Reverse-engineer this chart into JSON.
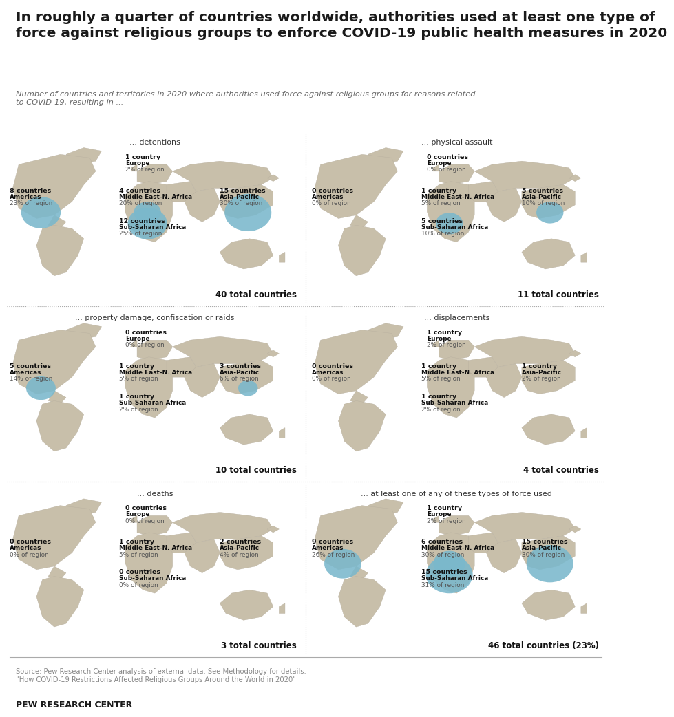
{
  "title": "In roughly a quarter of countries worldwide, authorities used at least one type of\nforce against religious groups to enforce COVID-19 public health measures in 2020",
  "subtitle": "Number of countries and territories in 2020 where authorities used force against religious groups for reasons related\nto COVID-19, resulting in ...",
  "source": "Source: Pew Research Center analysis of external data. See Methodology for details.\n\"How COVID-19 Restrictions Affected Religious Groups Around the World in 2020\"",
  "branding": "PEW RESEARCH CENTER",
  "bg_color": "#ffffff",
  "map_bg_color": "#ddd8c8",
  "map_color": "#c8bfaa",
  "bubble_color": "#7ab8cc",
  "panels": [
    {
      "title": "... detentions",
      "total": "40 total countries",
      "regions": [
        {
          "name": "Europe",
          "count": "1 country",
          "pct": "2% of region",
          "bubble": false,
          "bubble_size": 0
        },
        {
          "name": "Americas",
          "count": "8 countries",
          "pct": "23% of region",
          "bubble": true,
          "bubble_size": 32
        },
        {
          "name": "Middle East-N. Africa",
          "count": "4 countries",
          "pct": "20% of region",
          "bubble": true,
          "bubble_size": 22
        },
        {
          "name": "Asia-Pacific",
          "count": "15 countries",
          "pct": "30% of region",
          "bubble": true,
          "bubble_size": 38
        },
        {
          "name": "Sub-Saharan Africa",
          "count": "12 countries",
          "pct": "25% of region",
          "bubble": true,
          "bubble_size": 32
        }
      ]
    },
    {
      "title": "... physical assault",
      "total": "11 total countries",
      "regions": [
        {
          "name": "Europe",
          "count": "0 countries",
          "pct": "0% of region",
          "bubble": false,
          "bubble_size": 0
        },
        {
          "name": "Americas",
          "count": "0 countries",
          "pct": "0% of region",
          "bubble": false,
          "bubble_size": 0
        },
        {
          "name": "Middle East-N. Africa",
          "count": "1 country",
          "pct": "5% of region",
          "bubble": false,
          "bubble_size": 0
        },
        {
          "name": "Asia-Pacific",
          "count": "5 countries",
          "pct": "10% of region",
          "bubble": true,
          "bubble_size": 22
        },
        {
          "name": "Sub-Saharan Africa",
          "count": "5 countries",
          "pct": "10% of region",
          "bubble": true,
          "bubble_size": 22
        }
      ]
    },
    {
      "title": "... property damage, confiscation or raids",
      "total": "10 total countries",
      "regions": [
        {
          "name": "Europe",
          "count": "0 countries",
          "pct": "0% of region",
          "bubble": false,
          "bubble_size": 0
        },
        {
          "name": "Americas",
          "count": "5 countries",
          "pct": "14% of region",
          "bubble": true,
          "bubble_size": 24
        },
        {
          "name": "Middle East-N. Africa",
          "count": "1 country",
          "pct": "5% of region",
          "bubble": false,
          "bubble_size": 0
        },
        {
          "name": "Asia-Pacific",
          "count": "3 countries",
          "pct": "6% of region",
          "bubble": true,
          "bubble_size": 16
        },
        {
          "name": "Sub-Saharan Africa",
          "count": "1 country",
          "pct": "2% of region",
          "bubble": false,
          "bubble_size": 0
        }
      ]
    },
    {
      "title": "... displacements",
      "total": "4 total countries",
      "regions": [
        {
          "name": "Europe",
          "count": "1 country",
          "pct": "2% of region",
          "bubble": false,
          "bubble_size": 0
        },
        {
          "name": "Americas",
          "count": "0 countries",
          "pct": "0% of region",
          "bubble": false,
          "bubble_size": 0
        },
        {
          "name": "Middle East-N. Africa",
          "count": "1 country",
          "pct": "5% of region",
          "bubble": false,
          "bubble_size": 0
        },
        {
          "name": "Asia-Pacific",
          "count": "1 country",
          "pct": "2% of region",
          "bubble": false,
          "bubble_size": 0
        },
        {
          "name": "Sub-Saharan Africa",
          "count": "1 country",
          "pct": "2% of region",
          "bubble": false,
          "bubble_size": 0
        }
      ]
    },
    {
      "title": "... deaths",
      "total": "3 total countries",
      "regions": [
        {
          "name": "Europe",
          "count": "0 countries",
          "pct": "0% of region",
          "bubble": false,
          "bubble_size": 0
        },
        {
          "name": "Americas",
          "count": "0 countries",
          "pct": "0% of region",
          "bubble": false,
          "bubble_size": 0
        },
        {
          "name": "Middle East-N. Africa",
          "count": "1 country",
          "pct": "5% of region",
          "bubble": false,
          "bubble_size": 0
        },
        {
          "name": "Asia-Pacific",
          "count": "2 countries",
          "pct": "4% of region",
          "bubble": false,
          "bubble_size": 0
        },
        {
          "name": "Sub-Saharan Africa",
          "count": "0 countries",
          "pct": "0% of region",
          "bubble": false,
          "bubble_size": 0
        }
      ]
    },
    {
      "title": "... at least one of any of these types of force used",
      "total": "46 total countries (23%)",
      "regions": [
        {
          "name": "Europe",
          "count": "1 country",
          "pct": "2% of region",
          "bubble": false,
          "bubble_size": 0
        },
        {
          "name": "Americas",
          "count": "9 countries",
          "pct": "26% of region",
          "bubble": true,
          "bubble_size": 30
        },
        {
          "name": "Middle East-N. Africa",
          "count": "6 countries",
          "pct": "30% of region",
          "bubble": true,
          "bubble_size": 26
        },
        {
          "name": "Asia-Pacific",
          "count": "15 countries",
          "pct": "30% of region",
          "bubble": true,
          "bubble_size": 38
        },
        {
          "name": "Sub-Saharan Africa",
          "count": "15 countries",
          "pct": "31% of region",
          "bubble": true,
          "bubble_size": 38
        }
      ]
    }
  ]
}
